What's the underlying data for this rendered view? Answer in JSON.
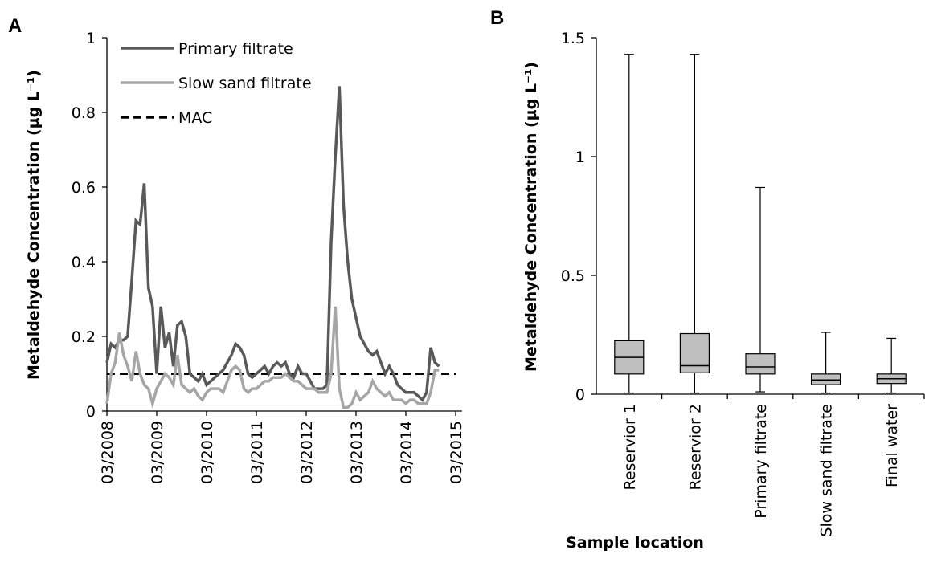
{
  "chart_data": [
    {
      "type": "line",
      "panel": "A",
      "y_label": "Metaldehyde Concentration (µg L⁻¹)",
      "x": [
        "03/2008",
        "04/2008",
        "05/2008",
        "06/2008",
        "07/2008",
        "08/2008",
        "09/2008",
        "10/2008",
        "11/2008",
        "12/2008",
        "01/2009",
        "02/2009",
        "03/2009",
        "04/2009",
        "05/2009",
        "06/2009",
        "07/2009",
        "08/2009",
        "09/2009",
        "10/2009",
        "11/2009",
        "12/2009",
        "01/2010",
        "02/2010",
        "03/2010",
        "04/2010",
        "05/2010",
        "06/2010",
        "07/2010",
        "08/2010",
        "09/2010",
        "10/2010",
        "11/2010",
        "12/2010",
        "01/2011",
        "02/2011",
        "03/2011",
        "04/2011",
        "05/2011",
        "06/2011",
        "07/2011",
        "08/2011",
        "09/2011",
        "10/2011",
        "11/2011",
        "12/2011",
        "01/2012",
        "02/2012",
        "03/2012",
        "04/2012",
        "05/2012",
        "06/2012",
        "07/2012",
        "08/2012",
        "09/2012",
        "10/2012",
        "11/2012",
        "12/2012",
        "01/2013",
        "02/2013",
        "03/2013",
        "04/2013",
        "05/2013",
        "06/2013",
        "07/2013",
        "08/2013",
        "09/2013",
        "10/2013",
        "11/2013",
        "12/2013",
        "01/2014",
        "02/2014",
        "03/2014",
        "04/2014",
        "05/2014",
        "06/2014",
        "07/2014",
        "08/2014",
        "09/2014",
        "10/2014",
        "11/2014"
      ],
      "series": [
        {
          "name": "Primary filtrate",
          "color": "#595959",
          "values": [
            0.13,
            0.18,
            0.17,
            0.19,
            0.19,
            0.2,
            0.35,
            0.51,
            0.5,
            0.61,
            0.33,
            0.28,
            0.1,
            0.28,
            0.17,
            0.21,
            0.12,
            0.23,
            0.24,
            0.2,
            0.1,
            0.09,
            0.08,
            0.1,
            0.07,
            0.08,
            0.09,
            0.1,
            0.11,
            0.13,
            0.15,
            0.18,
            0.17,
            0.15,
            0.1,
            0.09,
            0.1,
            0.11,
            0.12,
            0.1,
            0.12,
            0.13,
            0.12,
            0.13,
            0.1,
            0.09,
            0.12,
            0.1,
            0.1,
            0.08,
            0.06,
            0.06,
            0.06,
            0.07,
            0.45,
            0.68,
            0.87,
            0.55,
            0.4,
            0.3,
            0.25,
            0.2,
            0.18,
            0.16,
            0.15,
            0.16,
            0.13,
            0.1,
            0.12,
            0.1,
            0.07,
            0.06,
            0.05,
            0.05,
            0.05,
            0.04,
            0.03,
            0.05,
            0.17,
            0.13,
            0.12
          ]
        },
        {
          "name": "Slow sand filtrate",
          "color": "#a6a6a6",
          "values": [
            0.02,
            0.1,
            0.13,
            0.21,
            0.15,
            0.12,
            0.08,
            0.16,
            0.1,
            0.07,
            0.06,
            0.02,
            0.06,
            0.08,
            0.1,
            0.09,
            0.07,
            0.15,
            0.07,
            0.06,
            0.05,
            0.06,
            0.04,
            0.03,
            0.05,
            0.06,
            0.06,
            0.06,
            0.05,
            0.08,
            0.11,
            0.12,
            0.11,
            0.06,
            0.05,
            0.06,
            0.06,
            0.07,
            0.08,
            0.08,
            0.09,
            0.09,
            0.09,
            0.1,
            0.09,
            0.08,
            0.08,
            0.07,
            0.06,
            0.06,
            0.06,
            0.05,
            0.05,
            0.05,
            0.1,
            0.28,
            0.06,
            0.01,
            0.01,
            0.02,
            0.05,
            0.03,
            0.04,
            0.05,
            0.08,
            0.06,
            0.05,
            0.04,
            0.05,
            0.03,
            0.03,
            0.03,
            0.02,
            0.03,
            0.03,
            0.02,
            0.02,
            0.02,
            0.05,
            0.11,
            0.11
          ]
        }
      ],
      "reference_lines": [
        {
          "name": "MAC",
          "value": 0.1,
          "color": "#000000",
          "dash": true
        }
      ],
      "xlim": [
        "03/2008",
        "03/2015"
      ],
      "xticks": [
        "03/2008",
        "03/2009",
        "03/2010",
        "03/2011",
        "03/2012",
        "03/2013",
        "03/2014",
        "03/2015"
      ],
      "ylim": [
        0,
        1
      ],
      "yticks": [
        0,
        0.2,
        0.4,
        0.6,
        0.8,
        1
      ],
      "legend": "upper left"
    },
    {
      "type": "box",
      "panel": "B",
      "y_label": "Metaldehyde Concentration (µg L⁻¹)",
      "x_label": "Sample location",
      "categories": [
        "Reservior 1",
        "Reservior 2",
        "Primary filtrate",
        "Slow sand filtrate",
        "Final water"
      ],
      "boxes": [
        {
          "min": 0.005,
          "q1": 0.085,
          "median": 0.155,
          "q3": 0.225,
          "max": 1.43
        },
        {
          "min": 0.005,
          "q1": 0.09,
          "median": 0.12,
          "q3": 0.255,
          "max": 1.43
        },
        {
          "min": 0.01,
          "q1": 0.085,
          "median": 0.115,
          "q3": 0.17,
          "max": 0.87
        },
        {
          "min": 0.005,
          "q1": 0.04,
          "median": 0.06,
          "q3": 0.085,
          "max": 0.26
        },
        {
          "min": 0.005,
          "q1": 0.045,
          "median": 0.065,
          "q3": 0.085,
          "max": 0.235
        }
      ],
      "color": "#bfbfbf",
      "ylim": [
        0,
        1.5
      ],
      "yticks": [
        0,
        0.5,
        1,
        1.5
      ]
    }
  ]
}
